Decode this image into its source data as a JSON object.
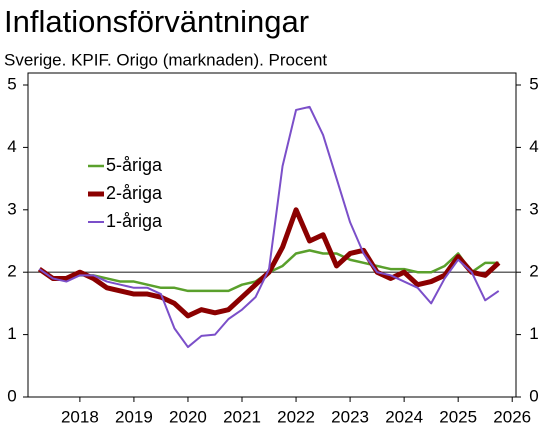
{
  "chart_data": {
    "type": "line",
    "title": "Inflationsförväntningar",
    "subtitle": "Sverige. KPIF. Origo (marknaden). Procent",
    "x": [
      2017.25,
      2017.5,
      2017.75,
      2018,
      2018.25,
      2018.5,
      2018.75,
      2019,
      2019.25,
      2019.5,
      2019.75,
      2020,
      2020.25,
      2020.5,
      2020.75,
      2021,
      2021.25,
      2021.5,
      2021.75,
      2022,
      2022.25,
      2022.5,
      2022.75,
      2023,
      2023.25,
      2023.5,
      2023.75,
      2024,
      2024.25,
      2024.5,
      2024.75,
      2025,
      2025.25,
      2025.5,
      2025.75
    ],
    "series": [
      {
        "name": "5-åriga",
        "color": "#5aa02c",
        "values": [
          2.05,
          1.9,
          1.9,
          1.95,
          1.95,
          1.9,
          1.85,
          1.85,
          1.8,
          1.75,
          1.75,
          1.7,
          1.7,
          1.7,
          1.7,
          1.8,
          1.85,
          2.0,
          2.1,
          2.3,
          2.35,
          2.3,
          2.3,
          2.2,
          2.15,
          2.1,
          2.05,
          2.05,
          2.0,
          2.0,
          2.1,
          2.3,
          2.0,
          2.15,
          2.15
        ]
      },
      {
        "name": "2-åriga",
        "color": "#8b0000",
        "values": [
          2.05,
          1.9,
          1.9,
          2.0,
          1.9,
          1.75,
          1.7,
          1.65,
          1.65,
          1.6,
          1.5,
          1.3,
          1.4,
          1.35,
          1.4,
          1.6,
          1.8,
          2.0,
          2.4,
          3.0,
          2.5,
          2.6,
          2.1,
          2.3,
          2.35,
          2.0,
          1.9,
          2.0,
          1.8,
          1.85,
          1.95,
          2.25,
          2.0,
          1.95,
          2.15
        ]
      },
      {
        "name": "1-åriga",
        "color": "#7b4fc9",
        "values": [
          2.05,
          1.9,
          1.85,
          1.95,
          1.95,
          1.85,
          1.8,
          1.75,
          1.75,
          1.65,
          1.1,
          0.8,
          0.98,
          1.0,
          1.25,
          1.4,
          1.6,
          2.05,
          3.7,
          4.6,
          4.65,
          4.2,
          3.5,
          2.8,
          2.3,
          2.0,
          1.95,
          1.85,
          1.75,
          1.5,
          1.9,
          2.2,
          2.0,
          1.55,
          1.7
        ]
      }
    ],
    "xlim": [
      2017.04,
      2026.07
    ],
    "xticks": [
      2018,
      2019,
      2020,
      2021,
      2022,
      2023,
      2024,
      2025,
      2026
    ],
    "ylim": [
      0,
      5
    ],
    "yticks": [
      0,
      1,
      2,
      3,
      4,
      5
    ],
    "y2lim": [
      0,
      5
    ],
    "y2ticks": [
      0,
      1,
      2,
      3,
      4,
      5
    ],
    "reference_line": 2,
    "legend": "left"
  }
}
